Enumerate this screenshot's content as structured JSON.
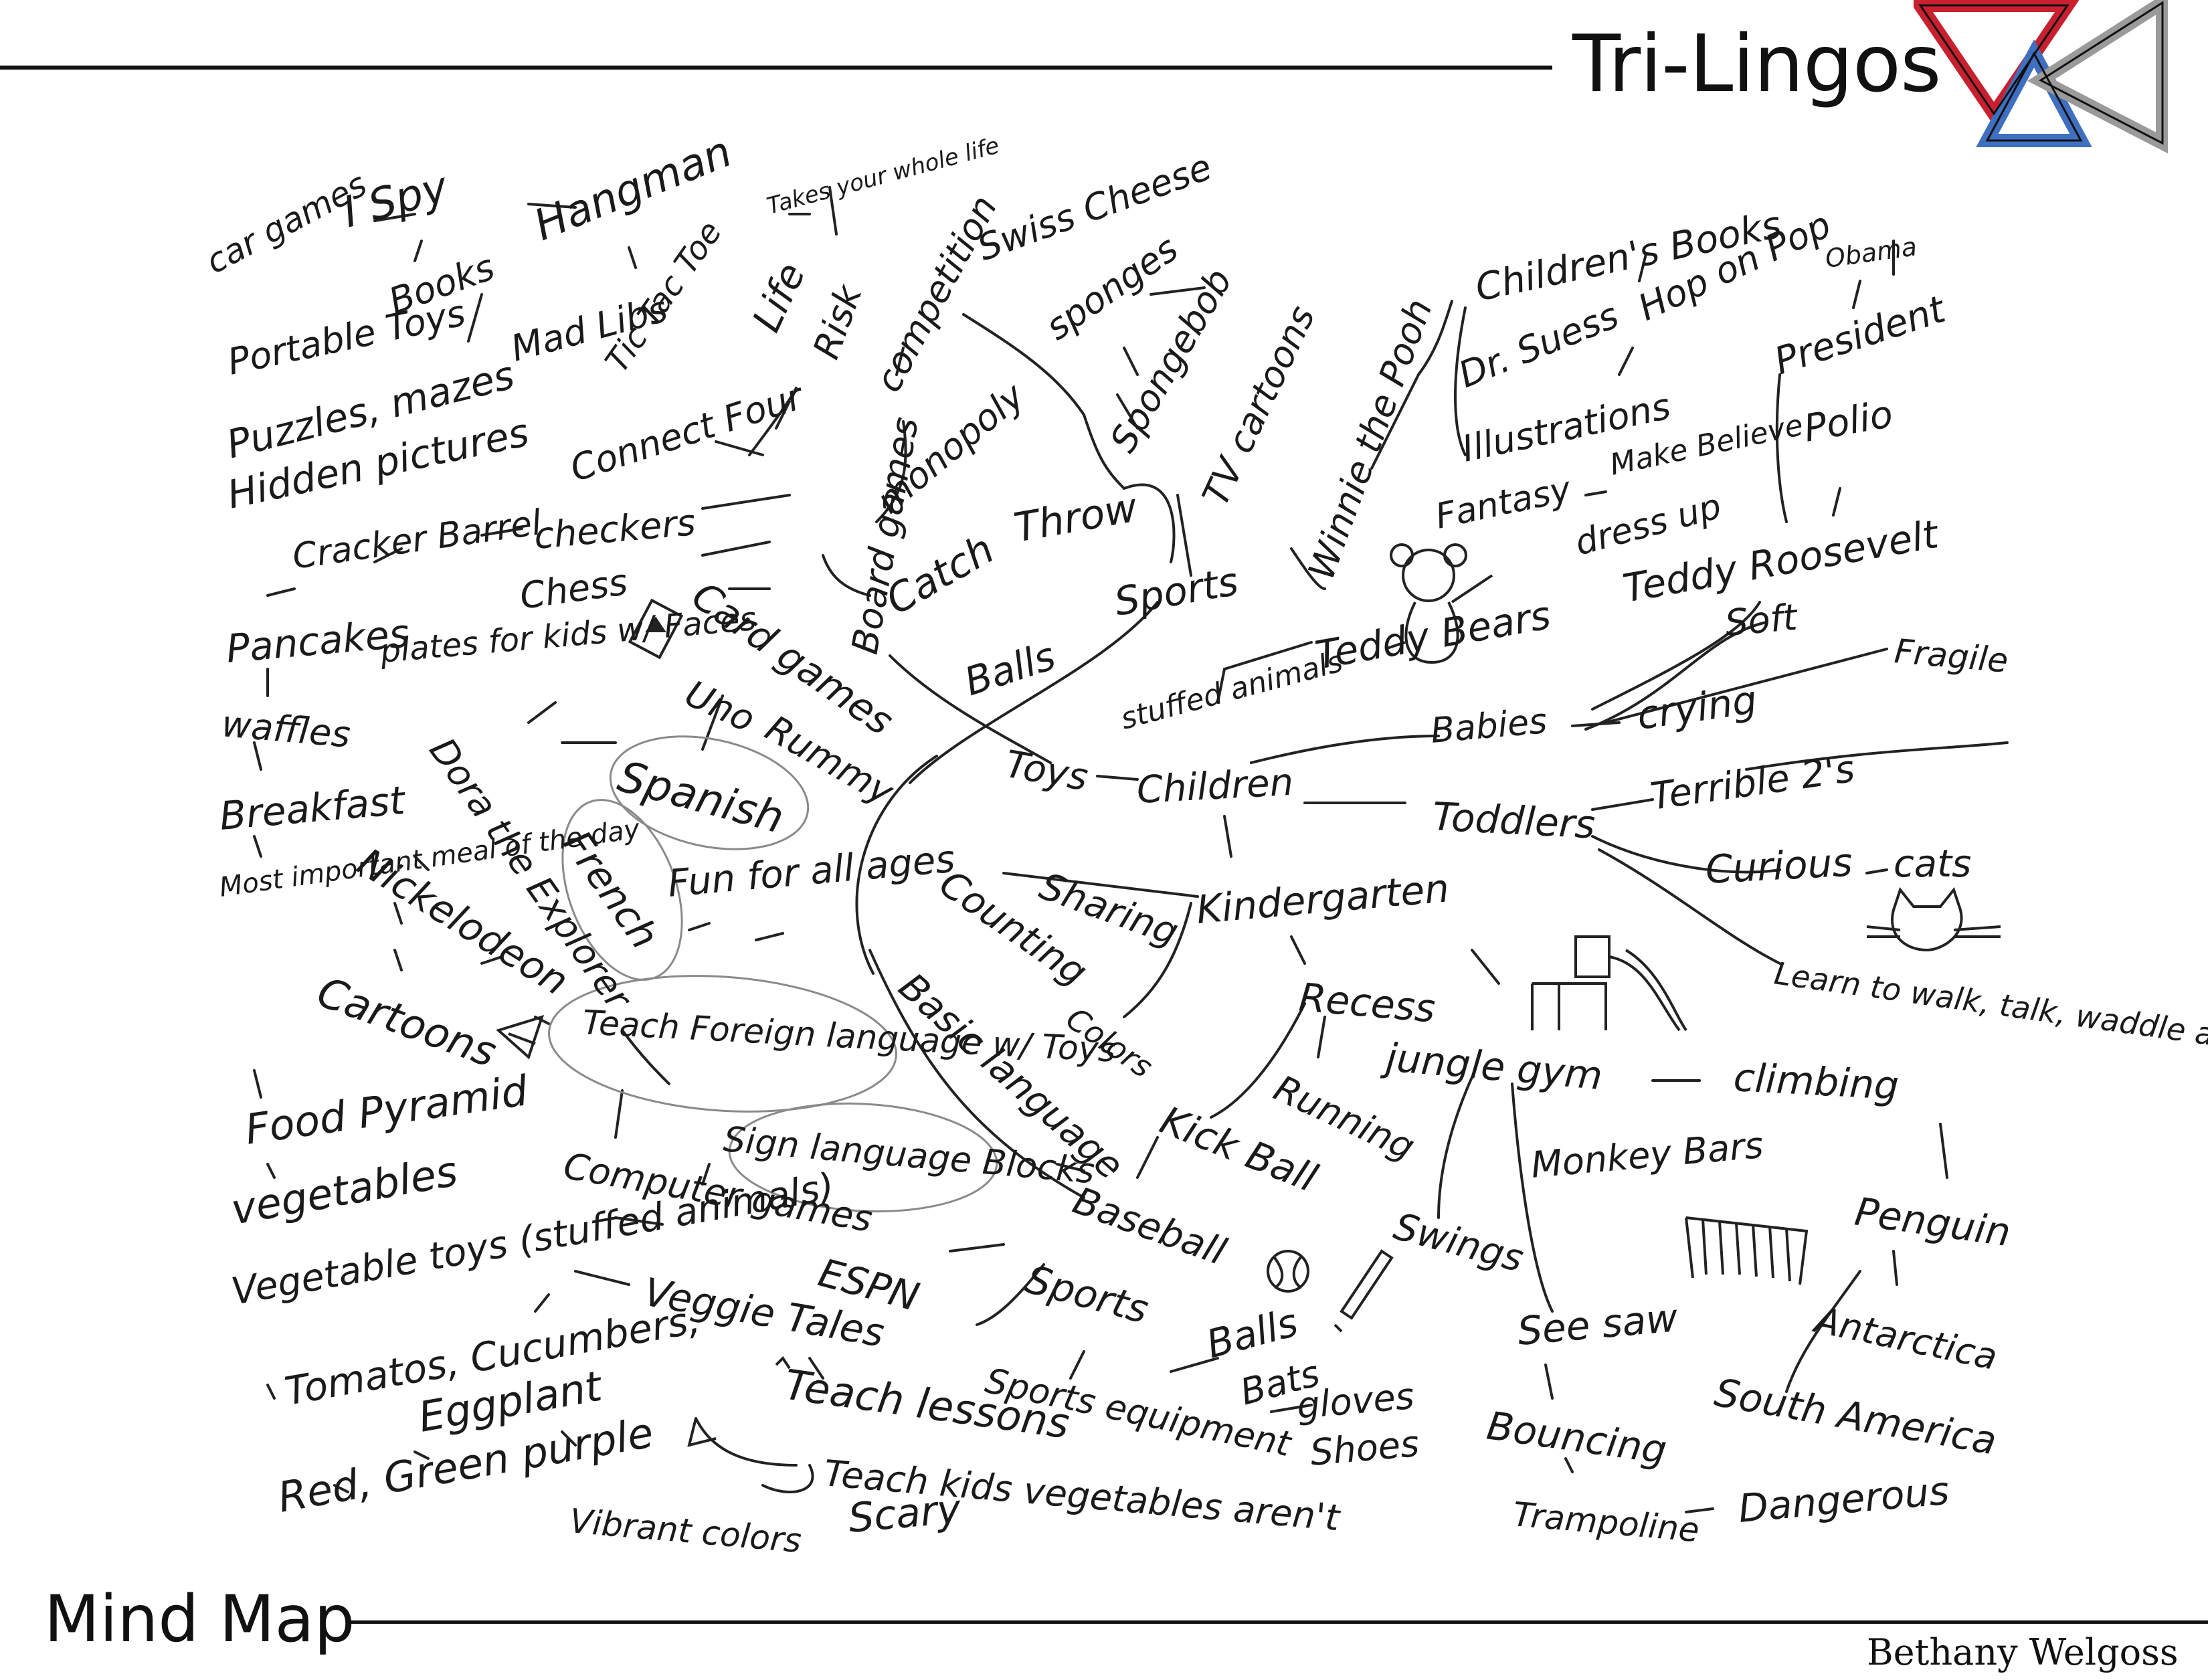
{
  "header": {
    "brand": "Tri-Lingos",
    "logo_colors": [
      "#c8202f",
      "#3f6fc0",
      "#9a9a9a"
    ]
  },
  "footer": {
    "title": "Mind Map",
    "author": "Bethany Welgoss"
  },
  "nodes": [
    {
      "id": "car-games",
      "label": "car games"
    },
    {
      "id": "i-spy",
      "label": "I Spy"
    },
    {
      "id": "hangman",
      "label": "Hangman"
    },
    {
      "id": "portable-toys",
      "label": "Portable Toys"
    },
    {
      "id": "books",
      "label": "Books"
    },
    {
      "id": "mad-libs",
      "label": "Mad Libs"
    },
    {
      "id": "tic-tac-toe",
      "label": "Tic Tac Toe"
    },
    {
      "id": "puzzles",
      "label": "Puzzles, mazes"
    },
    {
      "id": "hidden-pictures",
      "label": "Hidden pictures"
    },
    {
      "id": "connect-four",
      "label": "Connect Four"
    },
    {
      "id": "takes-your-whole-life",
      "label": "Takes your whole life"
    },
    {
      "id": "life",
      "label": "Life"
    },
    {
      "id": "risk",
      "label": "Risk"
    },
    {
      "id": "board-games",
      "label": "Board games"
    },
    {
      "id": "competition",
      "label": "competition"
    },
    {
      "id": "monopoly",
      "label": "monopoly"
    },
    {
      "id": "swiss-cheese",
      "label": "Swiss Cheese"
    },
    {
      "id": "sponges",
      "label": "sponges"
    },
    {
      "id": "spongebob",
      "label": "Spongebob"
    },
    {
      "id": "tv-cartoons",
      "label": "TV cartoons"
    },
    {
      "id": "winnie-the-pooh",
      "label": "Winnie the Pooh"
    },
    {
      "id": "childrens-books",
      "label": "Children's Books"
    },
    {
      "id": "dr-suess",
      "label": "Dr. Suess"
    },
    {
      "id": "hop-on-pop",
      "label": "Hop on Pop"
    },
    {
      "id": "obama",
      "label": "Obama"
    },
    {
      "id": "president",
      "label": "President"
    },
    {
      "id": "illustrations",
      "label": "Illustrations"
    },
    {
      "id": "polio",
      "label": "Polio"
    },
    {
      "id": "fantasy",
      "label": "Fantasy"
    },
    {
      "id": "make-believe",
      "label": "Make Believe"
    },
    {
      "id": "dress-up",
      "label": "dress up"
    },
    {
      "id": "teddy-roosevelt",
      "label": "Teddy Roosevelt"
    },
    {
      "id": "cracker-barrel",
      "label": "Cracker Barrel"
    },
    {
      "id": "checkers",
      "label": "checkers"
    },
    {
      "id": "chess",
      "label": "Chess"
    },
    {
      "id": "card-games",
      "label": "Card games"
    },
    {
      "id": "catch",
      "label": "Catch"
    },
    {
      "id": "throw",
      "label": "Throw"
    },
    {
      "id": "sports-top",
      "label": "Sports"
    },
    {
      "id": "balls-top",
      "label": "Balls"
    },
    {
      "id": "teddy-bears",
      "label": "Teddy Bears"
    },
    {
      "id": "soft",
      "label": "Soft"
    },
    {
      "id": "fragile",
      "label": "Fragile"
    },
    {
      "id": "pancakes",
      "label": "Pancakes"
    },
    {
      "id": "plates-for-kids",
      "label": "plates for kids w/ Faces"
    },
    {
      "id": "waffles",
      "label": "waffles"
    },
    {
      "id": "uno",
      "label": "Uno"
    },
    {
      "id": "rummy",
      "label": "Rummy"
    },
    {
      "id": "stuffed-animals",
      "label": "stuffed animals"
    },
    {
      "id": "babies",
      "label": "Babies"
    },
    {
      "id": "crying",
      "label": "crying"
    },
    {
      "id": "dora",
      "label": "Dora the Explorer"
    },
    {
      "id": "spanish",
      "label": "Spanish"
    },
    {
      "id": "toys",
      "label": "Toys"
    },
    {
      "id": "children",
      "label": "Children"
    },
    {
      "id": "toddlers",
      "label": "Toddlers"
    },
    {
      "id": "terrible-2s",
      "label": "Terrible 2's"
    },
    {
      "id": "breakfast",
      "label": "Breakfast"
    },
    {
      "id": "most-important",
      "label": "Most important meal of the day"
    },
    {
      "id": "nickelodeon",
      "label": "Nickelodeon"
    },
    {
      "id": "french",
      "label": "French"
    },
    {
      "id": "fun-for-all-ages",
      "label": "Fun for all ages"
    },
    {
      "id": "counting",
      "label": "Counting"
    },
    {
      "id": "sharing",
      "label": "Sharing"
    },
    {
      "id": "kindergarten",
      "label": "Kindergarten"
    },
    {
      "id": "curious",
      "label": "Curious"
    },
    {
      "id": "cats",
      "label": "cats"
    },
    {
      "id": "cartoons",
      "label": "Cartoons"
    },
    {
      "id": "teach-foreign-language",
      "label": "Teach Foreign language w/ Toys"
    },
    {
      "id": "basic-language",
      "label": "Basic language"
    },
    {
      "id": "colors-k",
      "label": "Colors"
    },
    {
      "id": "recess",
      "label": "Recess"
    },
    {
      "id": "learn-to-walk",
      "label": "Learn to walk, talk, waddle around"
    },
    {
      "id": "jungle-gym",
      "label": "jungle gym"
    },
    {
      "id": "climbing",
      "label": "climbing"
    },
    {
      "id": "food-pyramid",
      "label": "Food Pyramid"
    },
    {
      "id": "running",
      "label": "Running"
    },
    {
      "id": "kick-ball",
      "label": "Kick Ball"
    },
    {
      "id": "monkey-bars",
      "label": "Monkey Bars"
    },
    {
      "id": "vegetables",
      "label": "vegetables"
    },
    {
      "id": "sign-language-blocks",
      "label": "Sign language Blocks"
    },
    {
      "id": "computer-games",
      "label": "Computer games"
    },
    {
      "id": "baseball",
      "label": "Baseball"
    },
    {
      "id": "penguin",
      "label": "Penguin"
    },
    {
      "id": "vegetable-toys",
      "label": "Vegetable toys (stuffed animals)"
    },
    {
      "id": "veggie-tales",
      "label": "Veggie Tales"
    },
    {
      "id": "espn",
      "label": "ESPN"
    },
    {
      "id": "sports-bottom",
      "label": "Sports"
    },
    {
      "id": "swings",
      "label": "Swings"
    },
    {
      "id": "balls-bottom",
      "label": "Balls"
    },
    {
      "id": "bats",
      "label": "Bats"
    },
    {
      "id": "see-saw",
      "label": "See saw"
    },
    {
      "id": "antarctica",
      "label": "Antarctica"
    },
    {
      "id": "tomatos",
      "label": "Tomatos, Cucumbers,"
    },
    {
      "id": "eggplant",
      "label": "Eggplant"
    },
    {
      "id": "sports-equipment",
      "label": "Sports equipment"
    },
    {
      "id": "teach-lessons",
      "label": "Teach lessons"
    },
    {
      "id": "gloves",
      "label": "gloves"
    },
    {
      "id": "shoes",
      "label": "Shoes"
    },
    {
      "id": "south-america",
      "label": "South America"
    },
    {
      "id": "bouncing",
      "label": "Bouncing"
    },
    {
      "id": "red-green-purple",
      "label": "Red, Green purple"
    },
    {
      "id": "teach-kids-vegetables",
      "label": "Teach kids vegetables aren't"
    },
    {
      "id": "scary",
      "label": "Scary"
    },
    {
      "id": "vibrant-colors",
      "label": "Vibrant colors"
    },
    {
      "id": "trampoline",
      "label": "Trampoline"
    },
    {
      "id": "dangerous",
      "label": "Dangerous"
    }
  ]
}
